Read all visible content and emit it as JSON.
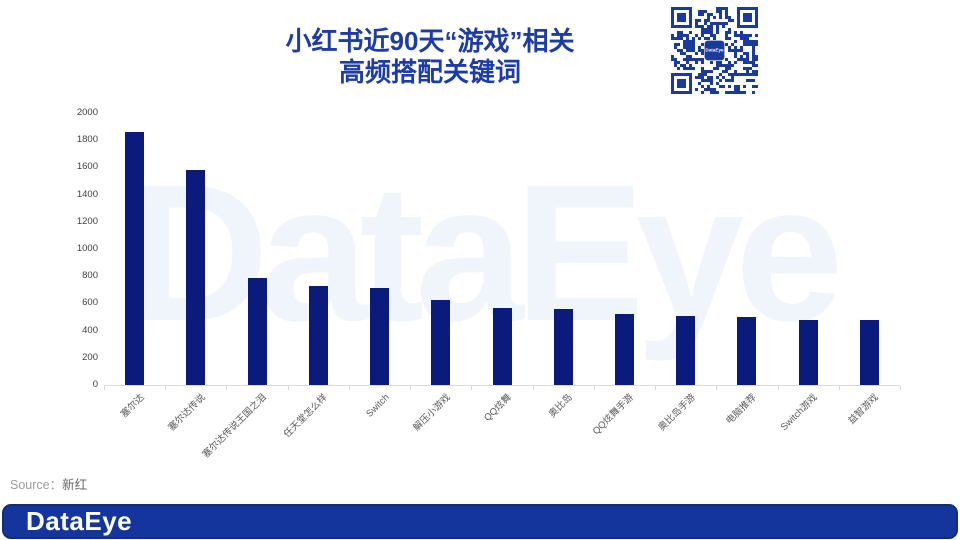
{
  "title": {
    "line1": "小红书近90天“游戏”相关",
    "line2": "高频搭配关键词"
  },
  "qr": {
    "center_label": "DataEye"
  },
  "watermark_text": "DataEye",
  "source": {
    "prefix": "Source：",
    "name": "新红"
  },
  "footer": {
    "logo_text": "DataEye"
  },
  "colors": {
    "bar": "#0b1b7c",
    "title": "#1d3ca8",
    "qr": "#1b3a9e",
    "watermark": "#eff5fb",
    "footer_bg": "#14359b",
    "footer_border": "#102d7a",
    "axis_line": "#d9d9d9",
    "tick_label": "#404040",
    "category_label": "#595959"
  },
  "chart_data": {
    "type": "bar",
    "title": "小红书近90天“游戏”相关高频搭配关键词",
    "categories": [
      "塞尔达",
      "塞尔达传说",
      "塞尔达传说王国之泪",
      "任天堂怎么样",
      "Switch",
      "解压小游戏",
      "QQ炫舞",
      "奥比岛",
      "QQ炫舞手游",
      "奥比岛手游",
      "电脑推荐",
      "Switch游戏",
      "益智游戏"
    ],
    "values": [
      1860,
      1580,
      785,
      730,
      715,
      625,
      565,
      560,
      520,
      505,
      500,
      480,
      475
    ],
    "xlabel": "",
    "ylabel": "",
    "ylim": [
      0,
      2000
    ],
    "yticks": [
      0,
      200,
      400,
      600,
      800,
      1000,
      1200,
      1400,
      1600,
      1800,
      2000
    ],
    "grid": false,
    "legend": false,
    "bar_color": "#0b1b7c",
    "category_label_rotation_deg": 45
  }
}
